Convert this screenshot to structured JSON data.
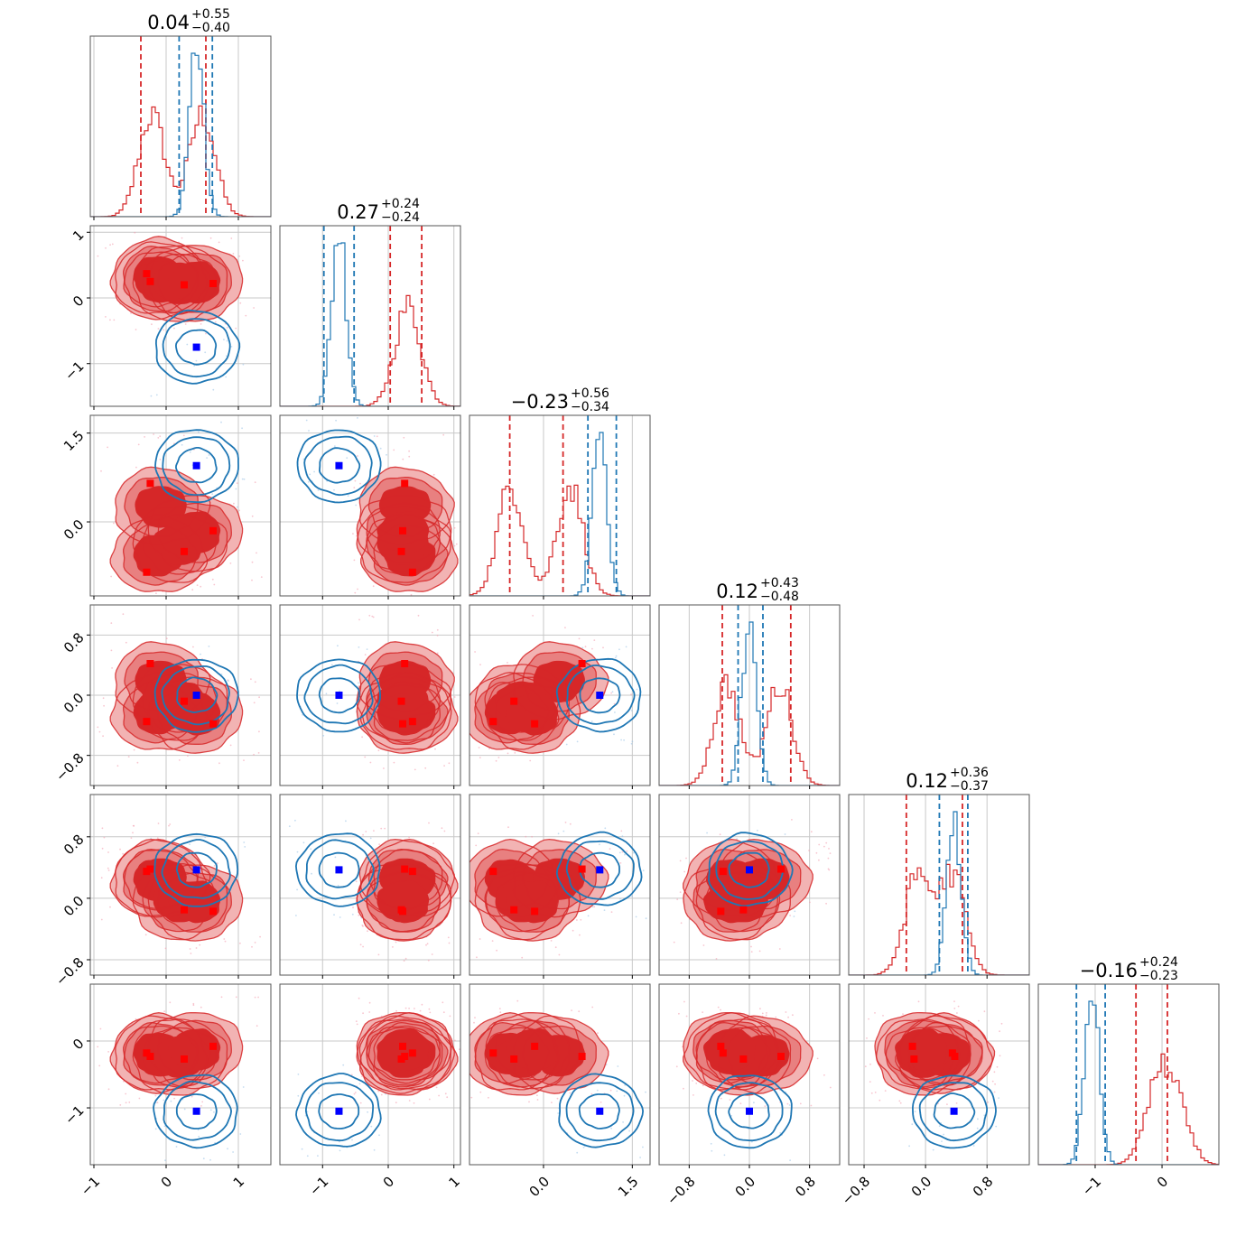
{
  "chart_data": {
    "type": "corner",
    "n_params": 6,
    "grid": true,
    "colors": {
      "red": "#d62728",
      "blue": "#1f77b4",
      "red_marker": "#ff0000",
      "blue_marker": "#0000ff"
    },
    "titles": [
      {
        "main": "0.04",
        "plus": "+0.55",
        "minus": "−0.40"
      },
      {
        "main": "0.27",
        "plus": "+0.24",
        "minus": "−0.24"
      },
      {
        "main": "−0.23",
        "plus": "+0.56",
        "minus": "−0.34"
      },
      {
        "main": "0.12",
        "plus": "+0.43",
        "minus": "−0.48"
      },
      {
        "main": "0.12",
        "plus": "+0.36",
        "minus": "−0.37"
      },
      {
        "main": "−0.16",
        "plus": "+0.24",
        "minus": "−0.23"
      }
    ],
    "params": [
      {
        "range": [
          -1.05,
          1.45
        ],
        "ticks": [
          -1,
          0,
          1
        ],
        "tick_labels": [
          "−1",
          "0",
          "1"
        ]
      },
      {
        "range": [
          -1.65,
          1.1
        ],
        "ticks": [
          -1,
          0,
          1
        ],
        "tick_labels": [
          "−1",
          "0",
          "1"
        ]
      },
      {
        "range": [
          -1.25,
          1.8
        ],
        "ticks": [
          0.0,
          1.5
        ],
        "tick_labels": [
          "0.0",
          "1.5"
        ]
      },
      {
        "range": [
          -1.2,
          1.2
        ],
        "ticks": [
          -0.8,
          0.0,
          0.8
        ],
        "tick_labels": [
          "−0.8",
          "0.0",
          "0.8"
        ]
      },
      {
        "range": [
          -1.0,
          1.35
        ],
        "ticks": [
          -0.8,
          0.0,
          0.8
        ],
        "tick_labels": [
          "−0.8",
          "0.0",
          "0.8"
        ]
      },
      {
        "range": [
          -1.85,
          0.85
        ],
        "ticks": [
          -1,
          0
        ],
        "tick_labels": [
          "−1",
          "0"
        ]
      }
    ],
    "populations": [
      {
        "name": "red",
        "color": "#d62728",
        "markers": [
          [
            -0.27,
            0.37,
            -0.85,
            -0.35,
            0.35,
            -0.18
          ],
          [
            -0.22,
            0.25,
            0.65,
            0.42,
            0.38,
            -0.23
          ],
          [
            0.25,
            0.2,
            -0.5,
            -0.08,
            -0.15,
            -0.27
          ],
          [
            0.65,
            0.22,
            -0.15,
            -0.38,
            -0.17,
            -0.08
          ]
        ],
        "quantiles": [
          [
            -0.35,
            0.55
          ],
          [
            0.03,
            0.51
          ],
          [
            -0.57,
            0.33
          ],
          [
            -0.36,
            0.55
          ],
          [
            -0.25,
            0.48
          ],
          [
            -0.39,
            0.08
          ]
        ],
        "hist_modes": [
          [
            -0.2,
            0.5
          ],
          [
            0.3,
            0.3
          ],
          [
            -0.55,
            0.45
          ],
          [
            -0.3,
            0.4
          ],
          [
            -0.1,
            0.35
          ],
          [
            -0.1,
            0.2
          ]
        ]
      },
      {
        "name": "blue",
        "color": "#1f77b4",
        "markers": [
          [
            0.42,
            -0.75,
            0.95,
            0.0,
            0.37,
            -1.05
          ]
        ],
        "quantiles": [
          [
            0.18,
            0.64
          ],
          [
            -0.98,
            -0.52
          ],
          [
            0.75,
            1.23
          ],
          [
            -0.15,
            0.18
          ],
          [
            0.18,
            0.55
          ],
          [
            -1.28,
            -0.85
          ]
        ]
      }
    ]
  }
}
